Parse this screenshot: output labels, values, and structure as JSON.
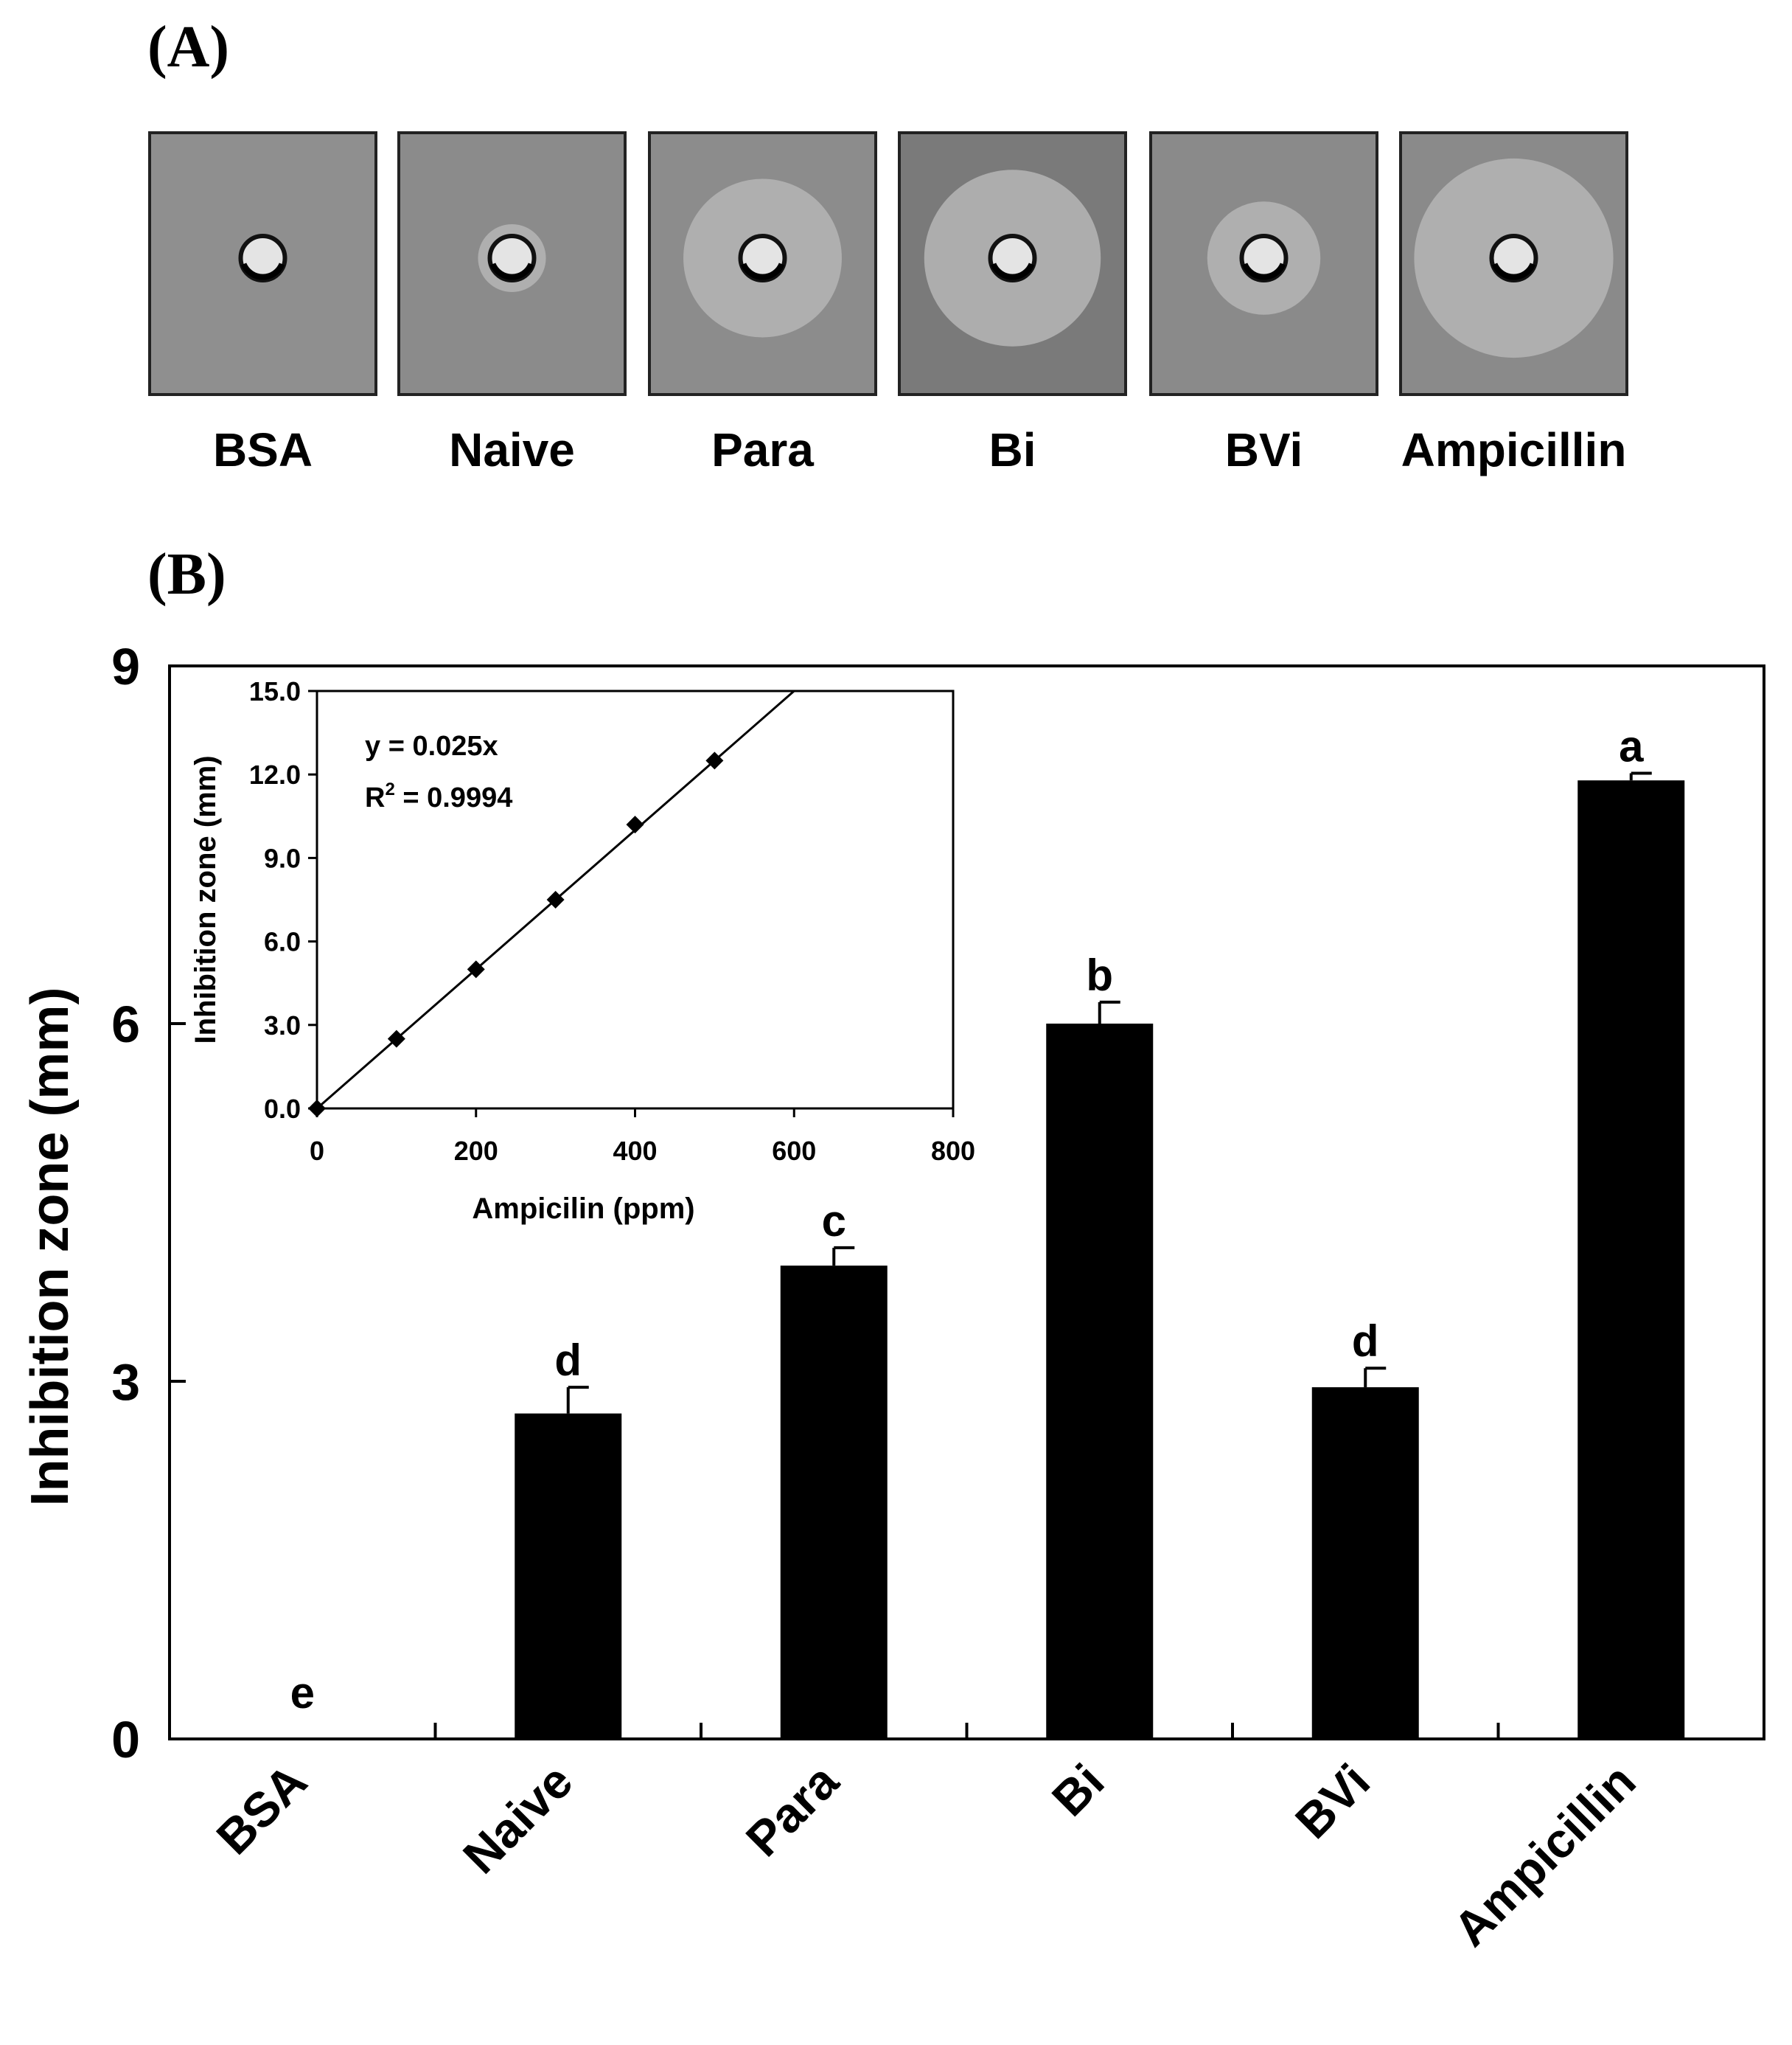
{
  "panel_a": {
    "label": "(A)",
    "plates": [
      {
        "label": "BSA",
        "halo": 0.0,
        "bg": "#8f8f8f"
      },
      {
        "label": "Naive",
        "halo": 0.3,
        "bg": "#8b8b8b"
      },
      {
        "label": "Para",
        "halo": 0.7,
        "bg": "#8c8c8c"
      },
      {
        "label": "Bi",
        "halo": 0.78,
        "bg": "#7a7a7a"
      },
      {
        "label": "BVi",
        "halo": 0.5,
        "bg": "#8a8a8a"
      },
      {
        "label": "Ampicillin",
        "halo": 0.88,
        "bg": "#8a8a8a"
      }
    ]
  },
  "panel_b": {
    "label": "(B)"
  },
  "chart_data": [
    {
      "type": "bar",
      "title": "",
      "xlabel": "",
      "ylabel": "Inhibition zone (mm)",
      "ylim": [
        0,
        9
      ],
      "yticks": [
        0,
        3,
        6,
        9
      ],
      "categories": [
        "BSA",
        "Naive",
        "Para",
        "Bi",
        "BVi",
        "Ampicillin"
      ],
      "values": [
        0,
        2.73,
        3.97,
        6.0,
        2.95,
        8.04
      ],
      "errors": [
        0,
        0.22,
        0.15,
        0.18,
        0.16,
        0.06
      ],
      "significance": [
        "e",
        "d",
        "c",
        "b",
        "d",
        "a"
      ],
      "bar_color": "#000000",
      "grid": false
    },
    {
      "type": "scatter",
      "title": "",
      "xlabel": "Ampicilin (ppm)",
      "ylabel": "Inhibition zone (mm)",
      "xlim": [
        0,
        800
      ],
      "ylim": [
        0,
        15
      ],
      "xticks": [
        0,
        200,
        400,
        600,
        800
      ],
      "yticks": [
        "0.0",
        "3.0",
        "6.0",
        "9.0",
        "12.0",
        "15.0"
      ],
      "x": [
        0,
        100,
        200,
        300,
        400,
        500
      ],
      "y": [
        0.0,
        2.5,
        5.0,
        7.5,
        10.2,
        12.5
      ],
      "trendline": {
        "slope": 0.025,
        "intercept": 0
      },
      "equation": "y = 0.025x",
      "r2_prefix": "R",
      "r2_exp": "2",
      "r2_value": " = 0.9994"
    }
  ]
}
